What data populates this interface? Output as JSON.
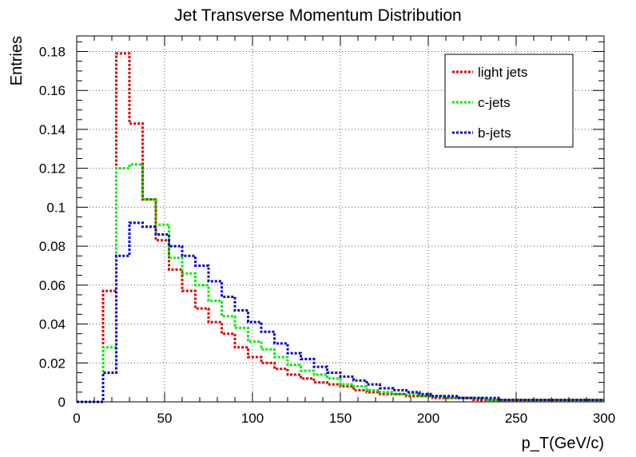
{
  "chart_data": {
    "type": "step",
    "title": "Jet Transverse Momentum Distribution",
    "xlabel": "p_T(GeV/c)",
    "ylabel": "Entries",
    "xlim": [
      0,
      300
    ],
    "ylim": [
      0,
      0.188
    ],
    "x_ticks": [
      0,
      50,
      100,
      150,
      200,
      250,
      300
    ],
    "y_ticks": [
      0,
      0.02,
      0.04,
      0.06,
      0.08,
      0.1,
      0.12,
      0.14,
      0.16,
      0.18
    ],
    "y_tick_labels": [
      "0",
      "0.02",
      "0.04",
      "0.06",
      "0.08",
      "0.1",
      "0.12",
      "0.14",
      "0.16",
      "0.18"
    ],
    "grid": true,
    "legend_position": "top-right",
    "bin_edges": [
      0,
      7.5,
      15,
      22.5,
      30,
      37.5,
      45,
      52.5,
      60,
      67.5,
      75,
      82.5,
      90,
      97.5,
      105,
      112.5,
      120,
      127.5,
      135,
      142.5,
      150,
      157.5,
      165,
      172.5,
      180,
      187.5,
      195,
      202.5,
      210,
      217.5,
      225,
      232.5,
      240,
      247.5,
      255,
      262.5,
      270,
      277.5,
      285,
      292.5,
      300
    ],
    "series": [
      {
        "name": "light jets",
        "color": "#dd0000",
        "values": [
          0,
          0,
          0.057,
          0.179,
          0.143,
          0.104,
          0.083,
          0.068,
          0.057,
          0.048,
          0.041,
          0.035,
          0.028,
          0.023,
          0.02,
          0.017,
          0.014,
          0.012,
          0.01,
          0.009,
          0.008,
          0.006,
          0.005,
          0.004,
          0.004,
          0.003,
          0.003,
          0.002,
          0.002,
          0.002,
          0.001,
          0.001,
          0.001,
          0.001,
          0.001,
          0.001,
          0.001,
          0.001,
          0.001,
          0.001
        ]
      },
      {
        "name": "c-jets",
        "color": "#00ee00",
        "values": [
          0,
          0,
          0.028,
          0.12,
          0.122,
          0.104,
          0.091,
          0.074,
          0.066,
          0.06,
          0.052,
          0.044,
          0.038,
          0.031,
          0.027,
          0.023,
          0.019,
          0.016,
          0.014,
          0.012,
          0.009,
          0.008,
          0.006,
          0.005,
          0.004,
          0.004,
          0.003,
          0.003,
          0.002,
          0.002,
          0.002,
          0.001,
          0.001,
          0.001,
          0.001,
          0.001,
          0.001,
          0.001,
          0.001,
          0.001
        ]
      },
      {
        "name": "b-jets",
        "color": "#0000cc",
        "values": [
          0,
          0,
          0.015,
          0.075,
          0.092,
          0.09,
          0.086,
          0.08,
          0.075,
          0.07,
          0.062,
          0.054,
          0.047,
          0.041,
          0.036,
          0.03,
          0.025,
          0.022,
          0.018,
          0.015,
          0.013,
          0.011,
          0.009,
          0.007,
          0.006,
          0.005,
          0.004,
          0.003,
          0.003,
          0.002,
          0.002,
          0.002,
          0.001,
          0.001,
          0.001,
          0.001,
          0.001,
          0.001,
          0.001,
          0.001
        ]
      }
    ]
  }
}
